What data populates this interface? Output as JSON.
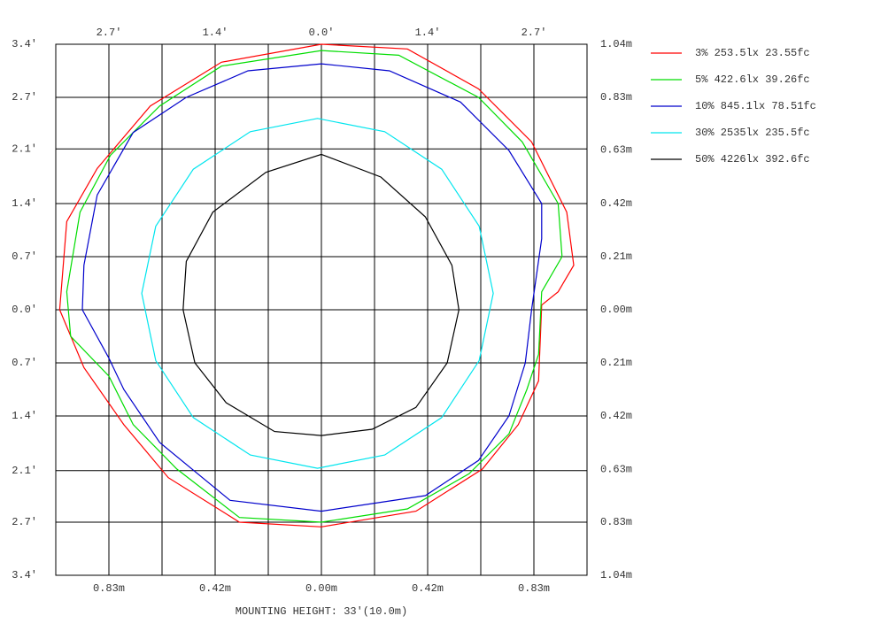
{
  "chart_data": {
    "type": "contour",
    "xlabel": "MOUNTING HEIGHT: 33'(10.0m)",
    "xlim": [
      -3.4,
      3.4
    ],
    "ylim": [
      -3.4,
      3.4
    ],
    "x2lim": [
      -1.04,
      1.04
    ],
    "y2lim": [
      -1.04,
      1.04
    ],
    "grid": true,
    "xticks": [
      {
        "value": -2.72,
        "label": "2.7'"
      },
      {
        "value": -1.36,
        "label": "1.4'"
      },
      {
        "value": 0,
        "label": "0.0'"
      },
      {
        "value": 1.36,
        "label": "1.4'"
      },
      {
        "value": 2.72,
        "label": "2.7'"
      }
    ],
    "yticks": [
      {
        "value": 3.4,
        "label": "3.4'"
      },
      {
        "value": 2.72,
        "label": "2.7'"
      },
      {
        "value": 2.06,
        "label": "2.1'"
      },
      {
        "value": 1.36,
        "label": "1.4'"
      },
      {
        "value": 0.68,
        "label": "0.7'"
      },
      {
        "value": 0,
        "label": "0.0'"
      },
      {
        "value": -0.68,
        "label": "0.7'"
      },
      {
        "value": -1.36,
        "label": "1.4'"
      },
      {
        "value": -2.06,
        "label": "2.1'"
      },
      {
        "value": -2.72,
        "label": "2.7'"
      },
      {
        "value": -3.4,
        "label": "3.4'"
      }
    ],
    "x2ticks": [
      {
        "value": -0.832,
        "label": "0.83m"
      },
      {
        "value": -0.416,
        "label": "0.42m"
      },
      {
        "value": 0,
        "label": "0.00m"
      },
      {
        "value": 0.416,
        "label": "0.42m"
      },
      {
        "value": 0.832,
        "label": "0.83m"
      }
    ],
    "y2ticks": [
      {
        "value": 1.04,
        "label": "1.04m"
      },
      {
        "value": 0.832,
        "label": "0.83m"
      },
      {
        "value": 0.626,
        "label": "0.63m"
      },
      {
        "value": 0.416,
        "label": "0.42m"
      },
      {
        "value": 0.208,
        "label": "0.21m"
      },
      {
        "value": 0,
        "label": "0.00m"
      },
      {
        "value": -0.208,
        "label": "0.21m"
      },
      {
        "value": -0.416,
        "label": "0.42m"
      },
      {
        "value": -0.626,
        "label": "0.63m"
      },
      {
        "value": -0.832,
        "label": "0.83m"
      },
      {
        "value": -1.04,
        "label": "1.04m"
      }
    ],
    "series": [
      {
        "name": "3% 253.5lx 23.55fc",
        "color": "#ff0000",
        "x": [
          0,
          1.1,
          2.01,
          2.69,
          3.14,
          3.23,
          3.03,
          2.82,
          2.78,
          2.52,
          2.06,
          1.21,
          0,
          -1.05,
          -1.96,
          -2.53,
          -3.04,
          -3.35,
          -3.26,
          -2.87,
          -2.19,
          -1.28
        ],
        "y": [
          3.4,
          3.34,
          2.83,
          2.15,
          1.25,
          0.57,
          0.23,
          0.06,
          -0.91,
          -1.47,
          -2.04,
          -2.58,
          -2.78,
          -2.72,
          -2.15,
          -1.47,
          -0.74,
          0,
          1.13,
          1.81,
          2.61,
          3.17
        ]
      },
      {
        "name": "5% 422.6lx 39.26fc",
        "color": "#00dd00",
        "x": [
          0,
          0.99,
          2.01,
          2.57,
          3.03,
          3.08,
          2.82,
          2.78,
          2.63,
          2.4,
          1.89,
          1.1,
          0,
          -1.05,
          -1.85,
          -2.41,
          -2.72,
          -3.21,
          -3.26,
          -3.09,
          -2.7,
          -2.07,
          -1.28
        ],
        "y": [
          3.32,
          3.26,
          2.72,
          2.15,
          1.36,
          0.68,
          0.23,
          -0.57,
          -1.02,
          -1.59,
          -2.1,
          -2.55,
          -2.72,
          -2.66,
          -2.04,
          -1.47,
          -0.85,
          -0.34,
          0.23,
          1.25,
          1.98,
          2.61,
          3.12
        ]
      },
      {
        "name": "10% 845.1lx 78.51fc",
        "color": "#0000cc",
        "x": [
          0,
          0.87,
          1.78,
          2.4,
          2.82,
          2.82,
          2.69,
          2.61,
          2.4,
          2.01,
          1.33,
          0,
          -1.17,
          -2.07,
          -2.53,
          -2.72,
          -3.06,
          -3.04,
          -2.87,
          -2.41,
          -1.73,
          -0.94
        ],
        "y": [
          3.15,
          3.06,
          2.66,
          2.04,
          1.36,
          0.91,
          0,
          -0.68,
          -1.36,
          -1.93,
          -2.38,
          -2.58,
          -2.44,
          -1.7,
          -1.02,
          -0.62,
          0,
          0.57,
          1.47,
          2.27,
          2.72,
          3.06
        ]
      },
      {
        "name": "30% 2535lx 235.5fc",
        "color": "#00e5ee",
        "x": [
          2.2,
          2.02,
          1.54,
          0.81,
          -0.05,
          -0.91,
          -1.64,
          -2.12,
          -2.3,
          -2.12,
          -1.64,
          -0.91,
          -0.05,
          0.81,
          1.54,
          2.02
        ],
        "y": [
          0.21,
          1.07,
          1.8,
          2.28,
          2.45,
          2.28,
          1.8,
          1.07,
          0.21,
          -0.65,
          -1.38,
          -1.86,
          -2.03,
          -1.86,
          -1.38,
          -0.65
        ]
      },
      {
        "name": "50% 4226lx 392.6fc",
        "color": "#000000",
        "x": [
          0,
          0.76,
          1.33,
          1.67,
          1.76,
          1.61,
          1.21,
          0.65,
          0,
          -0.6,
          -1.22,
          -1.62,
          -1.77,
          -1.73,
          -1.39,
          -0.71
        ],
        "y": [
          1.99,
          1.7,
          1.19,
          0.57,
          0,
          -0.68,
          -1.25,
          -1.53,
          -1.61,
          -1.56,
          -1.19,
          -0.68,
          0,
          0.62,
          1.25,
          1.76
        ]
      }
    ]
  }
}
